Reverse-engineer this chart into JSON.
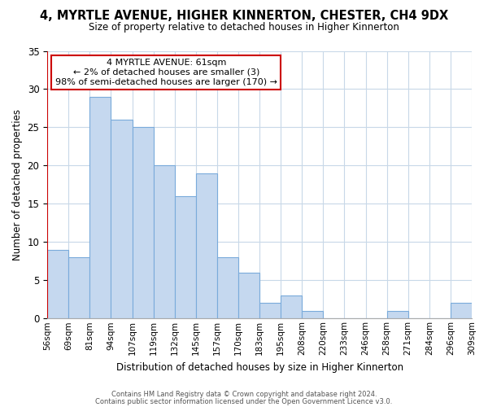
{
  "title": "4, MYRTLE AVENUE, HIGHER KINNERTON, CHESTER, CH4 9DX",
  "subtitle": "Size of property relative to detached houses in Higher Kinnerton",
  "xlabel": "Distribution of detached houses by size in Higher Kinnerton",
  "ylabel": "Number of detached properties",
  "footer_line1": "Contains HM Land Registry data © Crown copyright and database right 2024.",
  "footer_line2": "Contains public sector information licensed under the Open Government Licence v3.0.",
  "bin_edges": [
    "56sqm",
    "69sqm",
    "81sqm",
    "94sqm",
    "107sqm",
    "119sqm",
    "132sqm",
    "145sqm",
    "157sqm",
    "170sqm",
    "183sqm",
    "195sqm",
    "208sqm",
    "220sqm",
    "233sqm",
    "246sqm",
    "258sqm",
    "271sqm",
    "284sqm",
    "296sqm",
    "309sqm"
  ],
  "bar_values": [
    9,
    8,
    29,
    26,
    25,
    20,
    16,
    19,
    8,
    6,
    2,
    3,
    1,
    0,
    0,
    0,
    1,
    0,
    0,
    2
  ],
  "bar_color_normal": "#c5d8ef",
  "bar_edgecolor": "#7aabdb",
  "highlight_bar_left_color": "#cc0000",
  "highlight_index": 0,
  "annotation_title": "4 MYRTLE AVENUE: 61sqm",
  "annotation_line1": "← 2% of detached houses are smaller (3)",
  "annotation_line2": "98% of semi-detached houses are larger (170) →",
  "ylim": [
    0,
    35
  ],
  "yticks": [
    0,
    5,
    10,
    15,
    20,
    25,
    30,
    35
  ],
  "background_color": "#ffffff",
  "grid_color": "#c8d8e8"
}
